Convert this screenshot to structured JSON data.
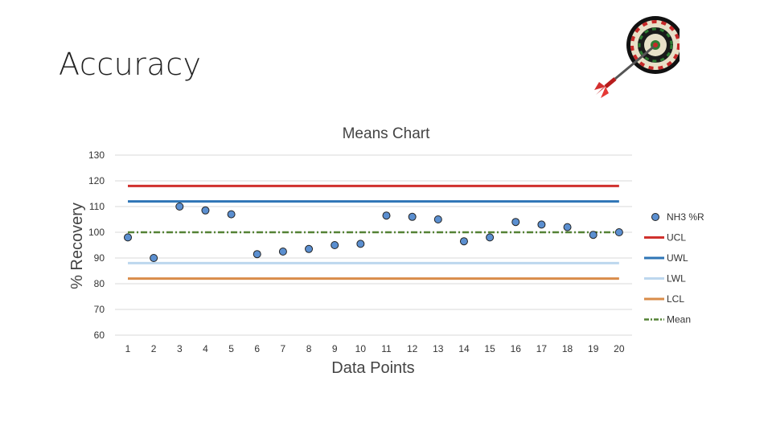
{
  "slide": {
    "title": "Accuracy"
  },
  "chart_data": {
    "type": "scatter",
    "title": "Means Chart",
    "xlabel": "Data Points",
    "ylabel": "% Recovery",
    "ylim": [
      60,
      130
    ],
    "yticks": [
      60,
      70,
      80,
      90,
      100,
      110,
      120,
      130
    ],
    "x": [
      1,
      2,
      3,
      4,
      5,
      6,
      7,
      8,
      9,
      10,
      11,
      12,
      13,
      14,
      15,
      16,
      17,
      18,
      19,
      20
    ],
    "grid": true,
    "legend_position": "right",
    "series": [
      {
        "name": "NH3 %R",
        "kind": "points",
        "color": "#5b8fd0",
        "values": [
          98,
          90,
          110,
          108.5,
          107,
          91.5,
          92.5,
          93.5,
          95,
          95.5,
          106.5,
          106,
          105,
          96.5,
          98,
          104,
          103,
          102,
          99,
          100
        ]
      },
      {
        "name": "UCL",
        "kind": "line",
        "color": "#d0312d",
        "value": 118
      },
      {
        "name": "UWL",
        "kind": "line",
        "color": "#2e75b6",
        "value": 112
      },
      {
        "name": "LWL",
        "kind": "line",
        "color": "#bdd7ee",
        "value": 88
      },
      {
        "name": "LCL",
        "kind": "line",
        "color": "#d98c4a",
        "value": 82
      },
      {
        "name": "Mean",
        "kind": "dashdot",
        "color": "#548235",
        "value": 100
      }
    ]
  }
}
